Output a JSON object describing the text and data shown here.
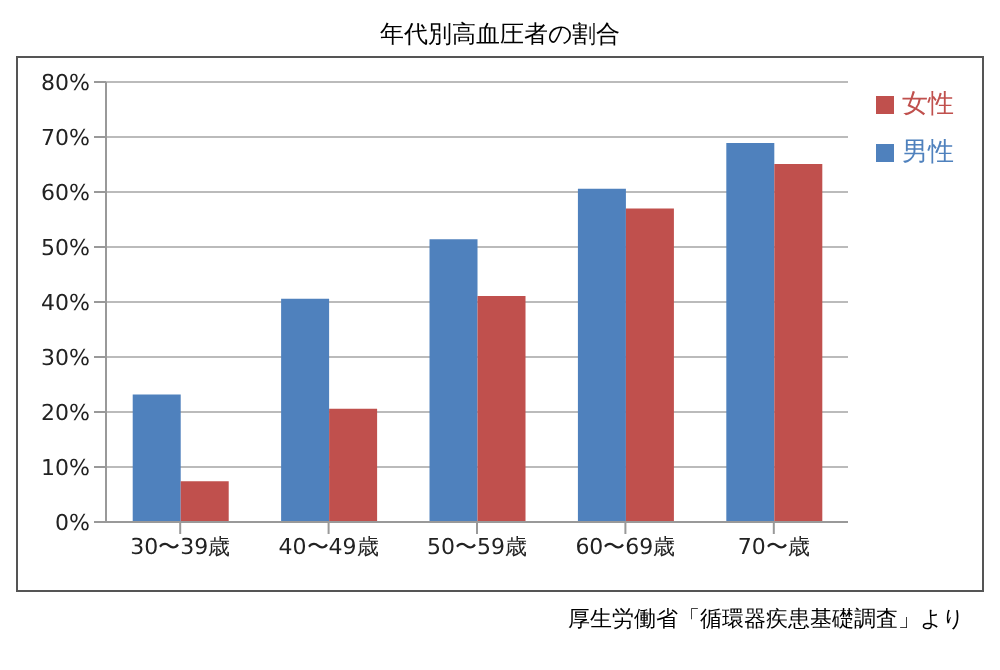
{
  "chart_data": {
    "type": "bar",
    "title": "年代別高血圧者の割合",
    "categories": [
      "30〜39歳",
      "40〜49歳",
      "50〜59歳",
      "60〜69歳",
      "70〜歳"
    ],
    "series": [
      {
        "name": "男性",
        "color": "#4f81bd",
        "values": [
          23.2,
          40.6,
          51.4,
          60.6,
          68.9
        ]
      },
      {
        "name": "女性",
        "color": "#c0504d",
        "values": [
          7.4,
          20.6,
          41.1,
          57.0,
          65.1
        ]
      }
    ],
    "ylim": [
      0,
      80
    ],
    "yticks": [
      {
        "value": 0,
        "label": "0%"
      },
      {
        "value": 10,
        "label": "10%"
      },
      {
        "value": 20,
        "label": "20%"
      },
      {
        "value": 30,
        "label": "30%"
      },
      {
        "value": 40,
        "label": "40%"
      },
      {
        "value": 50,
        "label": "50%"
      },
      {
        "value": 60,
        "label": "60%"
      },
      {
        "value": 70,
        "label": "70%"
      },
      {
        "value": 80,
        "label": "80%"
      }
    ],
    "grid": "y",
    "legend": "top right",
    "annotations": [
      "厚生労働省「循環器疾患基礎調査」より"
    ]
  }
}
